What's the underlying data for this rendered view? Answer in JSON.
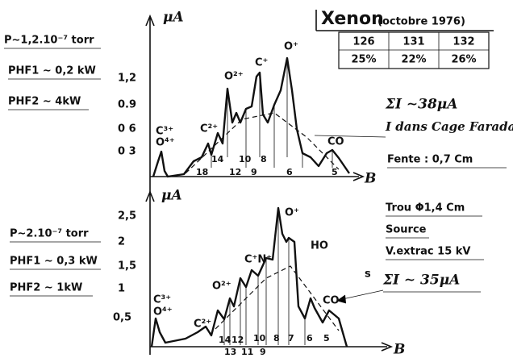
{
  "header": {
    "title": "Xenon",
    "subtitle": "(octobre 1976)"
  },
  "table": {
    "rows": [
      [
        "126",
        "131",
        "132"
      ],
      [
        "25%",
        "22%",
        "26%"
      ]
    ]
  },
  "top": {
    "pressure": "P∼1,2.10⁻⁷ torr",
    "phf1": "PHF1 ∼ 0,2 kW",
    "phf2": "PHF2 ∼ 4kW",
    "y_unit": "μA",
    "x_unit": "B",
    "yticks": [
      "1,2",
      "0.9",
      "0 6",
      "0 3"
    ],
    "current": "ΣI ∼38μA",
    "note": "I dans Cage Faraday",
    "slit": "Fente : 0,7 Cm",
    "peaks": [
      "C³⁺",
      "O⁴⁺",
      "C²⁺",
      "O²⁺",
      "C⁺",
      "O⁺",
      "CO"
    ],
    "lines": [
      "18",
      "14",
      "12",
      "10",
      "9",
      "8",
      "6",
      "5"
    ]
  },
  "bottom": {
    "pressure": "P∼2.10⁻⁷ torr",
    "phf1": "PHF1 ∼ 0,3 kW",
    "phf2": "PHF2 ∼ 1kW",
    "y_unit": "μA",
    "x_unit": "B",
    "yticks": [
      "2,5",
      "2",
      "1,5",
      "1",
      "0,5"
    ],
    "hole": "Trou Φ1,4 Cm",
    "source": "Source",
    "extraction": "V.extrac 15 kV",
    "s": "s",
    "current": "ΣI ∼ 35μA",
    "peaks": [
      "C³⁺",
      "O⁴⁺",
      "C²⁺",
      "O²⁺",
      "C⁺N⁺",
      "O⁺",
      "HO",
      "CO"
    ],
    "lines": [
      "14",
      "12",
      "10",
      "8",
      "7",
      "6",
      "5",
      "13",
      "11",
      "9"
    ]
  }
}
